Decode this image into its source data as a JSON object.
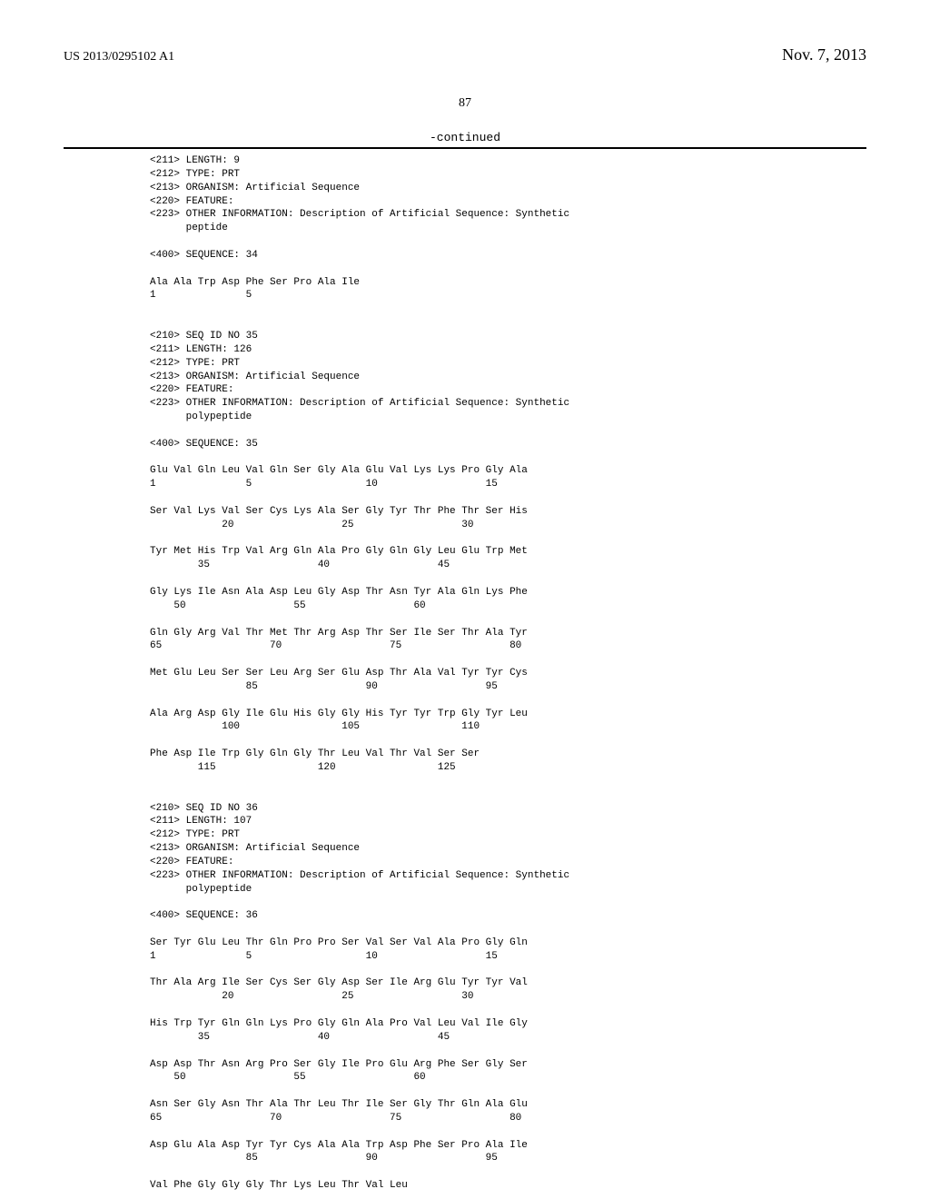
{
  "header": {
    "pub_number": "US 2013/0295102 A1",
    "pub_date": "Nov. 7, 2013"
  },
  "page_number": "87",
  "continued_label": "-continued",
  "sequence_text": "<211> LENGTH: 9\n<212> TYPE: PRT\n<213> ORGANISM: Artificial Sequence\n<220> FEATURE:\n<223> OTHER INFORMATION: Description of Artificial Sequence: Synthetic\n      peptide\n\n<400> SEQUENCE: 34\n\nAla Ala Trp Asp Phe Ser Pro Ala Ile\n1               5\n\n\n<210> SEQ ID NO 35\n<211> LENGTH: 126\n<212> TYPE: PRT\n<213> ORGANISM: Artificial Sequence\n<220> FEATURE:\n<223> OTHER INFORMATION: Description of Artificial Sequence: Synthetic\n      polypeptide\n\n<400> SEQUENCE: 35\n\nGlu Val Gln Leu Val Gln Ser Gly Ala Glu Val Lys Lys Pro Gly Ala\n1               5                   10                  15\n\nSer Val Lys Val Ser Cys Lys Ala Ser Gly Tyr Thr Phe Thr Ser His\n            20                  25                  30\n\nTyr Met His Trp Val Arg Gln Ala Pro Gly Gln Gly Leu Glu Trp Met\n        35                  40                  45\n\nGly Lys Ile Asn Ala Asp Leu Gly Asp Thr Asn Tyr Ala Gln Lys Phe\n    50                  55                  60\n\nGln Gly Arg Val Thr Met Thr Arg Asp Thr Ser Ile Ser Thr Ala Tyr\n65                  70                  75                  80\n\nMet Glu Leu Ser Ser Leu Arg Ser Glu Asp Thr Ala Val Tyr Tyr Cys\n                85                  90                  95\n\nAla Arg Asp Gly Ile Glu His Gly Gly His Tyr Tyr Trp Gly Tyr Leu\n            100                 105                 110\n\nPhe Asp Ile Trp Gly Gln Gly Thr Leu Val Thr Val Ser Ser\n        115                 120                 125\n\n\n<210> SEQ ID NO 36\n<211> LENGTH: 107\n<212> TYPE: PRT\n<213> ORGANISM: Artificial Sequence\n<220> FEATURE:\n<223> OTHER INFORMATION: Description of Artificial Sequence: Synthetic\n      polypeptide\n\n<400> SEQUENCE: 36\n\nSer Tyr Glu Leu Thr Gln Pro Pro Ser Val Ser Val Ala Pro Gly Gln\n1               5                   10                  15\n\nThr Ala Arg Ile Ser Cys Ser Gly Asp Ser Ile Arg Glu Tyr Tyr Val\n            20                  25                  30\n\nHis Trp Tyr Gln Gln Lys Pro Gly Gln Ala Pro Val Leu Val Ile Gly\n        35                  40                  45\n\nAsp Asp Thr Asn Arg Pro Ser Gly Ile Pro Glu Arg Phe Ser Gly Ser\n    50                  55                  60\n\nAsn Ser Gly Asn Thr Ala Thr Leu Thr Ile Ser Gly Thr Gln Ala Glu\n65                  70                  75                  80\n\nAsp Glu Ala Asp Tyr Tyr Cys Ala Ala Trp Asp Phe Ser Pro Ala Ile\n                85                  90                  95\n\nVal Phe Gly Gly Gly Thr Lys Leu Thr Val Leu"
}
